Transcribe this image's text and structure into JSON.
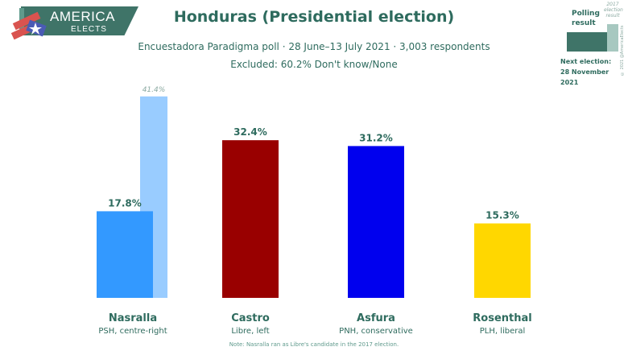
{
  "brand": {
    "name": "AMERICA",
    "tagline": "ELECTS"
  },
  "header": {
    "title": "Honduras (Presidential election)",
    "subtitle": "Encuestadora Paradigma poll · 28 June–13 July 2021 · 3,003 respondents",
    "excluded": "Excluded: 60.2% Don't know/None"
  },
  "legend": {
    "polling_line1": "Polling",
    "polling_line2": "result",
    "prev_line1": "2017",
    "prev_line2": "election",
    "prev_line3": "result",
    "copyright": "© 2021 @AmericaElects"
  },
  "next_election": {
    "label": "Next election:",
    "date": "28 November 2021"
  },
  "note": "Note: Nasralla ran as Libre's candidate in the 2017 election.",
  "colors": {
    "theme": "#2e6b5e",
    "legend_dark": "#3f7468",
    "legend_light": "#a7c8c0"
  },
  "chart_data": {
    "type": "bar",
    "ylim": [
      0,
      45
    ],
    "categories": [
      "Nasralla",
      "Castro",
      "Asfura",
      "Rosenthal"
    ],
    "parties": [
      "PSH, centre-right",
      "Libre, left",
      "PNH, conservative",
      "PLH, liberal"
    ],
    "series": [
      {
        "values": [
          17.8,
          32.4,
          31.2,
          15.3
        ],
        "labels": [
          "17.8%",
          "32.4%",
          "31.2%",
          "15.3%"
        ],
        "colors": [
          "#3399ff",
          "#990000",
          "#0000ee",
          "#ffd700"
        ]
      },
      {
        "values": [
          41.4,
          null,
          null,
          null
        ],
        "labels": [
          "41.4%",
          "",
          "",
          ""
        ],
        "colors": [
          "#99ccff",
          null,
          null,
          null
        ]
      }
    ]
  }
}
